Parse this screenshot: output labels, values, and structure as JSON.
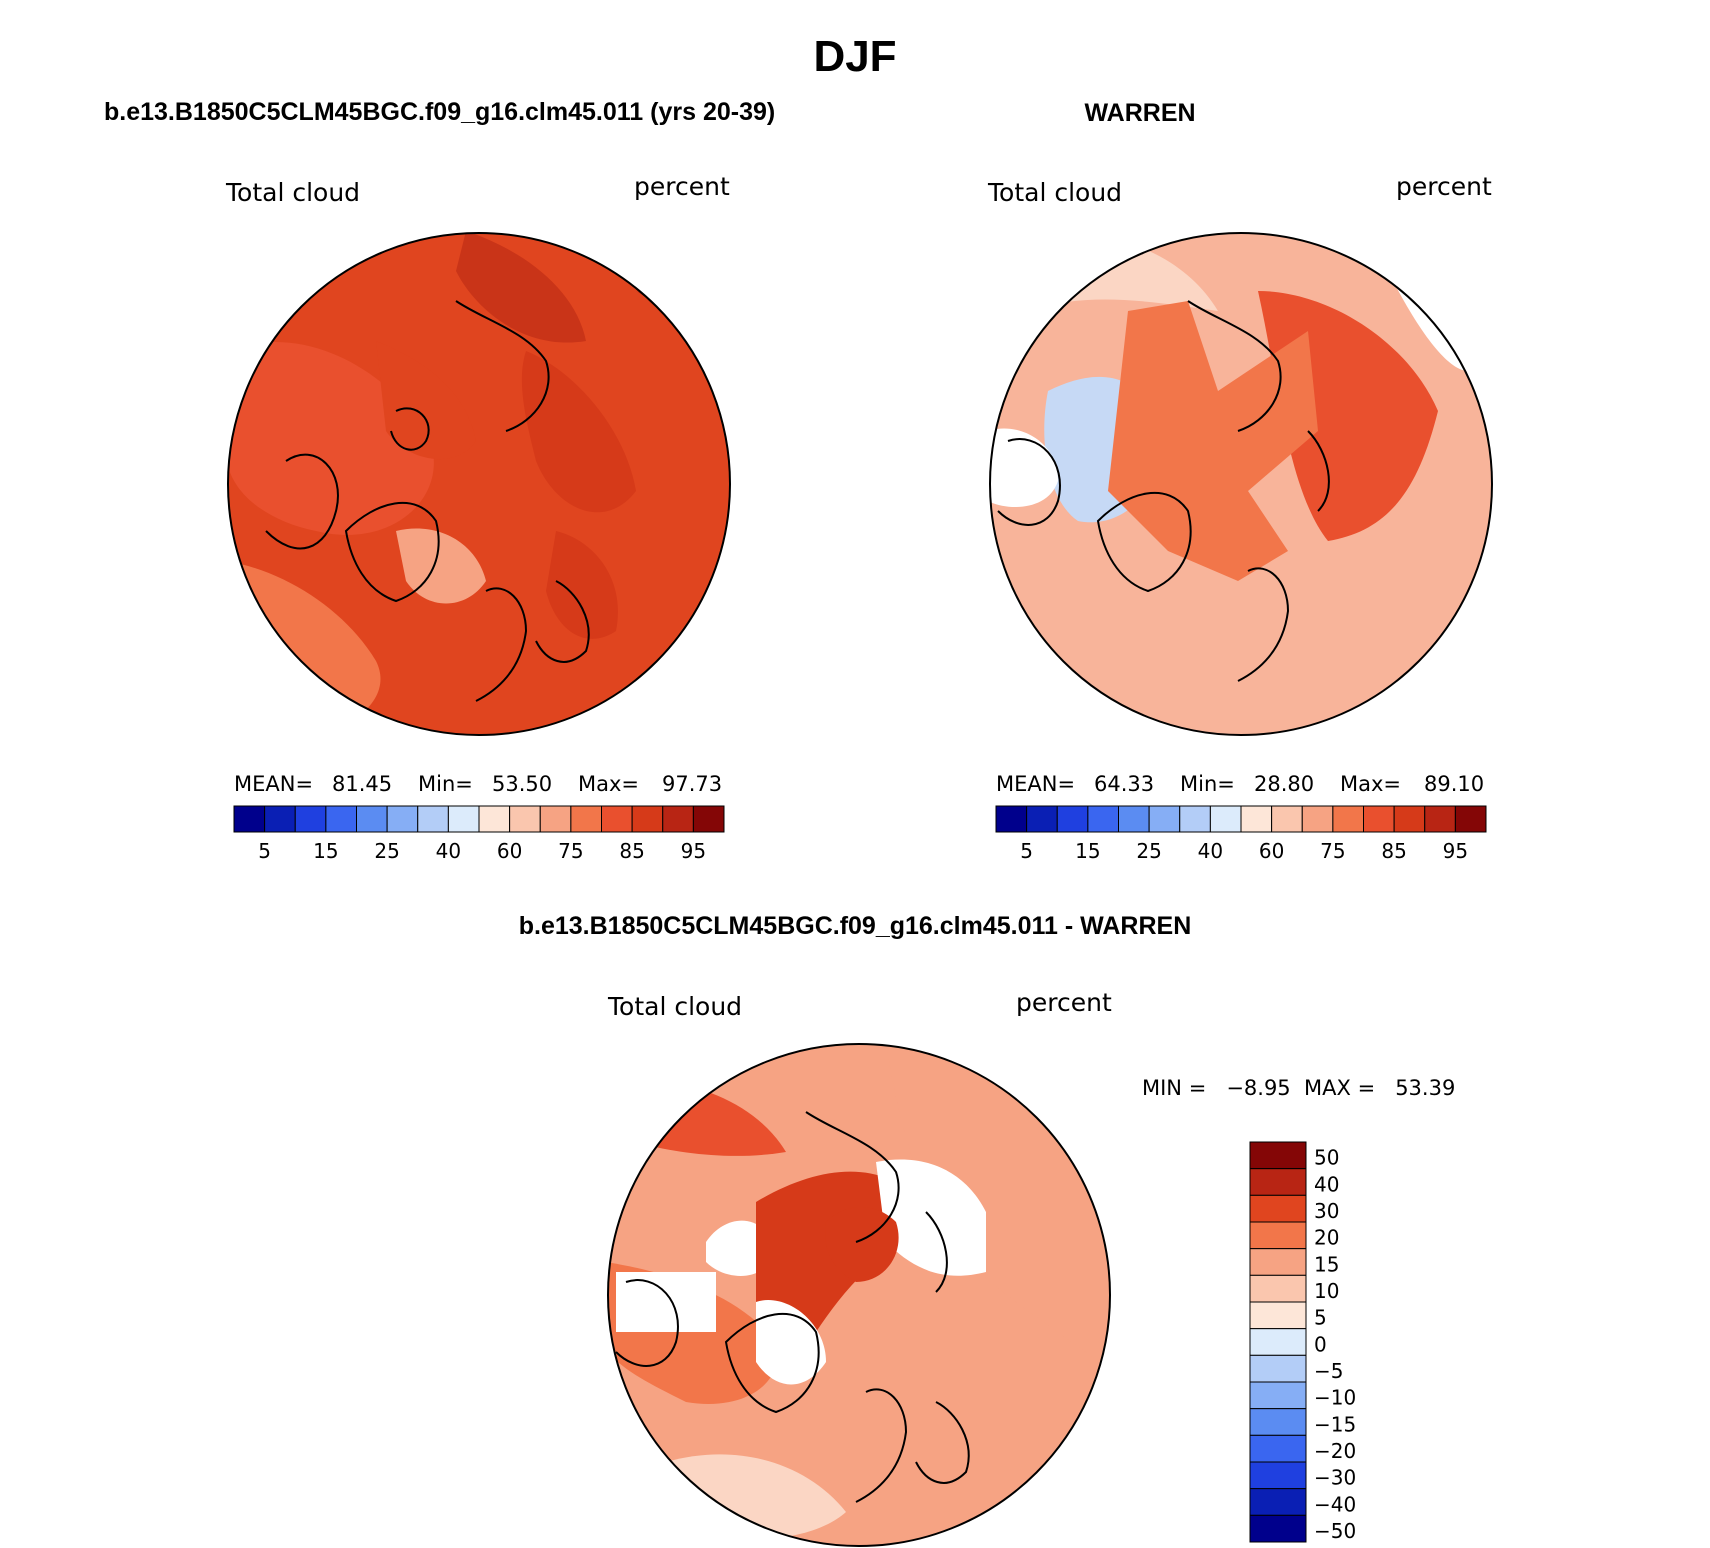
{
  "figure": {
    "title": "DJF",
    "panel_left_title": "b.e13.B1850C5CLM45BGC.f09_g16.clm45.011 (yrs 20-39)",
    "panel_right_title": "WARREN",
    "panel_diff_title": "b.e13.B1850C5CLM45BGC.f09_g16.clm45.011 - WARREN"
  },
  "panels": {
    "left": {
      "variable": "Total cloud",
      "units": "percent",
      "mean_label": "MEAN=",
      "mean": "81.45",
      "min_label": "Min=",
      "min": "53.50",
      "max_label": "Max=",
      "max": "97.73",
      "fill_colors": [
        "#e9502e",
        "#f2764a",
        "#c93418",
        "#e0451f",
        "#f6a383",
        "#d63a19"
      ]
    },
    "right": {
      "variable": "Total cloud",
      "units": "percent",
      "mean_label": "MEAN=",
      "mean": "64.33",
      "min_label": "Min=",
      "min": "28.80",
      "max_label": "Max=",
      "max": "89.10",
      "fill_colors": [
        "#f8b49a",
        "#fbd6c4",
        "#e9502e",
        "#c6d9f5",
        "#ffffff",
        "#f2764a"
      ]
    },
    "diff": {
      "variable": "Total cloud",
      "units": "percent",
      "minmax_text": "MIN =   −8.95  MAX =   53.39",
      "fill_colors": [
        "#f6a383",
        "#f2764a",
        "#fbd6c4",
        "#e9502e",
        "#ffffff",
        "#d63a19"
      ]
    }
  },
  "colorbar_abs": {
    "colors": [
      "#00008c",
      "#0a1fb4",
      "#1f40e0",
      "#3a66f0",
      "#5b8cf2",
      "#86aef5",
      "#b3cdf7",
      "#dcebfb",
      "#fde6d8",
      "#fac6ae",
      "#f6a383",
      "#f2764a",
      "#e9502e",
      "#d63a19",
      "#b82514",
      "#840606"
    ],
    "tick_labels": [
      "5",
      "15",
      "25",
      "40",
      "60",
      "75",
      "85",
      "95"
    ]
  },
  "colorbar_diff": {
    "colors": [
      "#840606",
      "#b82514",
      "#e0451f",
      "#f2764a",
      "#f6a383",
      "#fac6ae",
      "#fde6d8",
      "#dcebfb",
      "#b3cdf7",
      "#86aef5",
      "#5b8cf2",
      "#3a66f0",
      "#1f40e0",
      "#0a1fb4",
      "#00008c"
    ],
    "tick_labels": [
      "50",
      "40",
      "30",
      "20",
      "15",
      "10",
      "5",
      "0",
      "−5",
      "−10",
      "−15",
      "−20",
      "−30",
      "−40",
      "−50"
    ]
  }
}
